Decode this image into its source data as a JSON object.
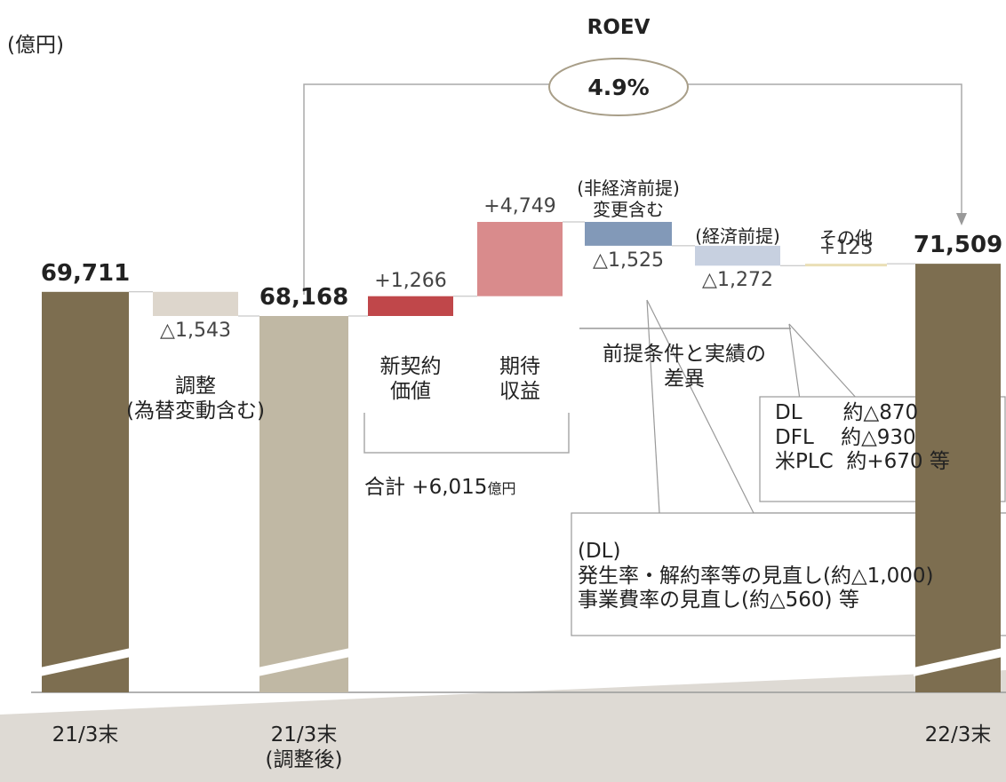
{
  "chart_data": {
    "type": "waterfall",
    "unit_label": "(億円)",
    "categories": [
      "21/3末",
      "調整\n(為替変動含む)",
      "21/3末\n(調整後)",
      "新契約\n価値",
      "期待\n収益",
      "(非経済前提)\n変更含む",
      "(経済前提)",
      "その他",
      "22/3末"
    ],
    "measures": [
      "absolute",
      "relative",
      "absolute",
      "relative",
      "relative",
      "relative",
      "relative",
      "relative",
      "absolute"
    ],
    "values": [
      69711,
      -1543,
      68168,
      1266,
      4749,
      -1525,
      -1272,
      123,
      71509
    ],
    "value_labels": [
      "69,711",
      "△1,543",
      "68,168",
      "+1,266",
      "+4,749",
      "△1,525",
      "△1,272",
      "+123",
      "71,509"
    ],
    "colors": [
      "#7d6e50",
      "#ddd6cc",
      "#c0b8a4",
      "#c0474a",
      "#d98b8c",
      "#8299b8",
      "#c7d0e0",
      "#eadfb6",
      "#7d6e50"
    ],
    "annotations": {
      "roev_title": "ROEV",
      "roev_value": "4.9%",
      "sum_text": "合計 +6,015",
      "sum_unit": "億円",
      "diff_label": "前提条件と実績の\n差異",
      "dl_box": [
        "DL　　約△870",
        "DFL　 約△930",
        "米PLC  約+670 等"
      ],
      "dl_box2": [
        "(DL)",
        "発生率・解約率等の見直し(約△1,000)",
        "事業費率の見直し(約△560) 等"
      ]
    }
  }
}
